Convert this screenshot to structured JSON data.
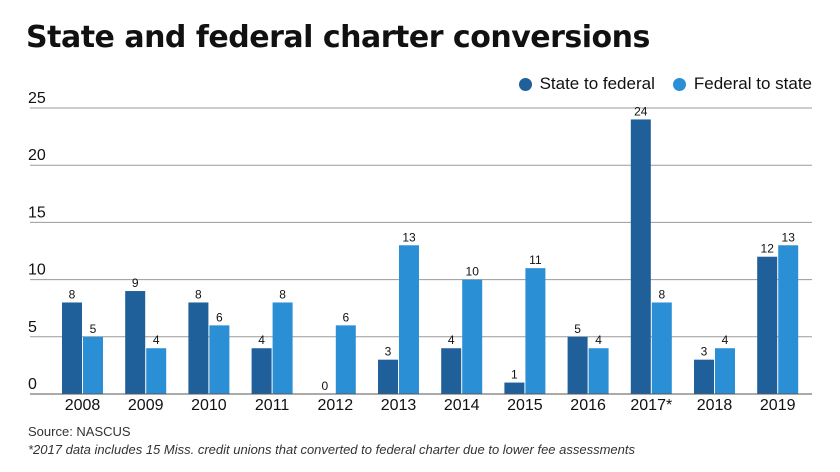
{
  "title": "State and federal charter conversions",
  "source": "Source: NASCUS",
  "footnote": "*2017 data includes 15 Miss. credit unions that converted to federal charter due to lower fee assessments",
  "chart_data": {
    "type": "bar",
    "title": "State and federal charter conversions",
    "xlabel": "",
    "ylabel": "",
    "ylim": [
      0,
      25
    ],
    "yticks": [
      0,
      5,
      10,
      15,
      20,
      25
    ],
    "grid": true,
    "legend": "top-right",
    "categories": [
      "2008",
      "2009",
      "2010",
      "2011",
      "2012",
      "2013",
      "2014",
      "2015",
      "2016",
      "2017*",
      "2018",
      "2019"
    ],
    "series": [
      {
        "name": "State to federal",
        "color": "#1f5f9a",
        "values": [
          8,
          9,
          8,
          4,
          0,
          3,
          4,
          1,
          5,
          24,
          3,
          12
        ]
      },
      {
        "name": "Federal to state",
        "color": "#2b8fd6",
        "values": [
          5,
          4,
          6,
          8,
          6,
          13,
          10,
          11,
          4,
          8,
          4,
          13
        ]
      }
    ]
  }
}
